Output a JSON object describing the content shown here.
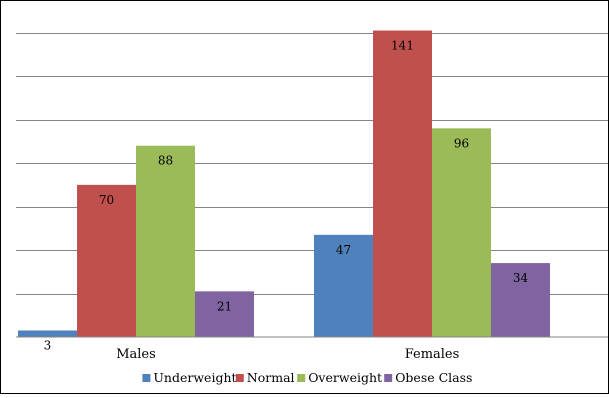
{
  "chart_data": {
    "type": "bar",
    "title": "",
    "xlabel": "",
    "ylabel": "",
    "categories": [
      "Males",
      "Females"
    ],
    "series": [
      {
        "name": "Underweight",
        "values": [
          3,
          47
        ],
        "color": "#4F81BD"
      },
      {
        "name": "Normal",
        "values": [
          70,
          141
        ],
        "color": "#C0504D"
      },
      {
        "name": "Overweight",
        "values": [
          88,
          96
        ],
        "color": "#9BBB59"
      },
      {
        "name": "Obese Class",
        "values": [
          21,
          34
        ],
        "color": "#8064A2"
      }
    ],
    "ylim": [
      0,
      144
    ],
    "gridlines": true,
    "gridline_step": 20,
    "y_tick_labels_shown": false,
    "legend_position": "bottom"
  }
}
